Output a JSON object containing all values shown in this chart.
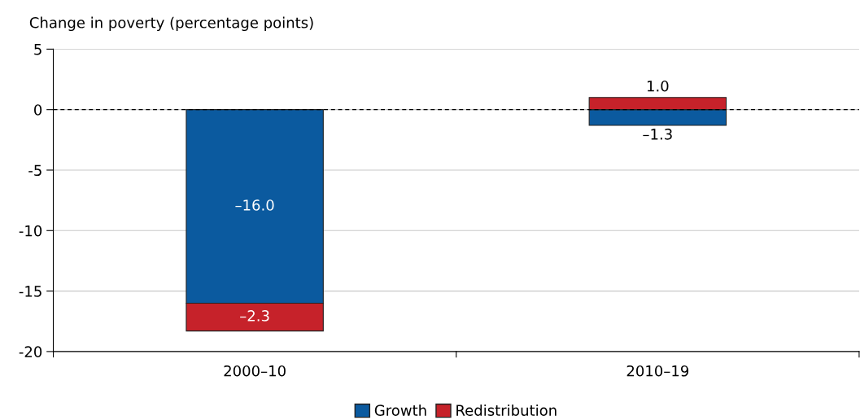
{
  "chart_data": {
    "type": "bar",
    "stacked": true,
    "ylabel": "Change in poverty (percentage points)",
    "categories": [
      "2000–10",
      "2010–19"
    ],
    "series": [
      {
        "name": "Growth",
        "color": "#0b5a9f",
        "values": [
          -16.0,
          -1.3
        ],
        "value_labels": [
          "–16.0",
          "–1.3"
        ]
      },
      {
        "name": "Redistribution",
        "color": "#c6222a",
        "values": [
          -2.3,
          1.0
        ],
        "value_labels": [
          "–2.3",
          "1.0"
        ]
      }
    ],
    "ylim": [
      -20,
      5
    ],
    "yticks": [
      5,
      0,
      {
        "value": -5,
        "label": "-5"
      },
      {
        "value": -10,
        "label": "-10"
      },
      {
        "value": -15,
        "label": "-15"
      },
      {
        "value": -20,
        "label": "-20"
      }
    ],
    "grid": "y",
    "legend": "bottom",
    "ref_lines": [
      {
        "axis": "y",
        "value": 0,
        "color": "#000000",
        "line_style": "dashed"
      }
    ]
  }
}
